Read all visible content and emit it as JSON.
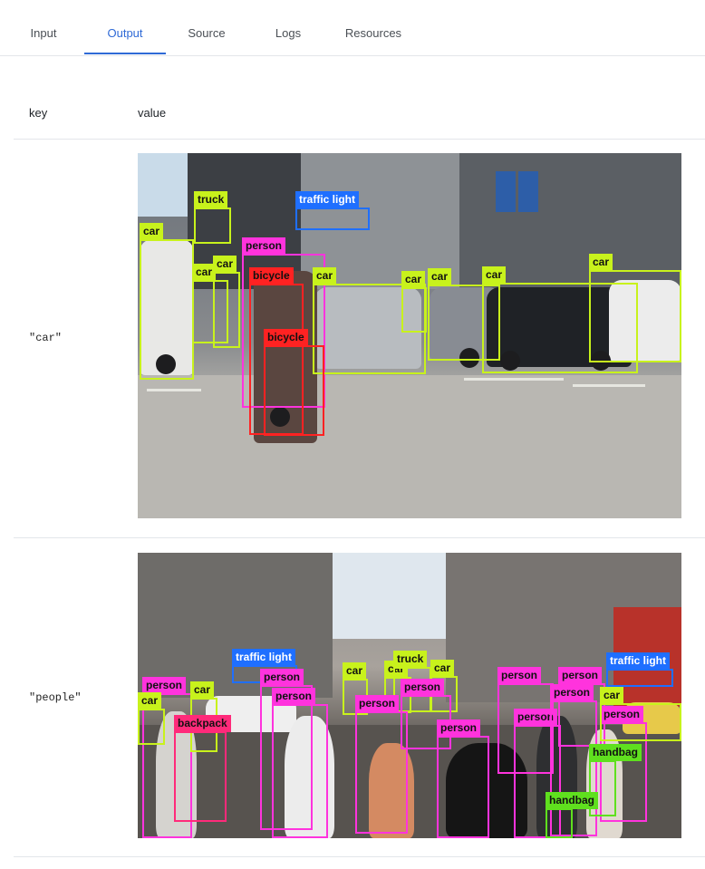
{
  "tabs": [
    {
      "label": "Input",
      "active": false
    },
    {
      "label": "Output",
      "active": true
    },
    {
      "label": "Source",
      "active": false
    },
    {
      "label": "Logs",
      "active": false
    },
    {
      "label": "Resources",
      "active": false
    }
  ],
  "table": {
    "key_header": "key",
    "value_header": "value",
    "rows": [
      {
        "key": "\"car\"",
        "detections": [
          {
            "label": "truck",
            "color": "#c8f21c"
          },
          {
            "label": "traffic light",
            "color": "#1f6fff"
          },
          {
            "label": "car",
            "color": "#c8f21c"
          },
          {
            "label": "person",
            "color": "#ff33dd"
          },
          {
            "label": "car",
            "color": "#c8f21c"
          },
          {
            "label": "car",
            "color": "#c8f21c"
          },
          {
            "label": "bicycle",
            "color": "#ff2222"
          },
          {
            "label": "car",
            "color": "#c8f21c"
          },
          {
            "label": "bicycle",
            "color": "#ff2222"
          },
          {
            "label": "car",
            "color": "#c8f21c"
          },
          {
            "label": "car",
            "color": "#c8f21c"
          },
          {
            "label": "car",
            "color": "#c8f21c"
          },
          {
            "label": "car",
            "color": "#c8f21c"
          }
        ]
      },
      {
        "key": "\"people\"",
        "detections": [
          {
            "label": "traffic light",
            "color": "#1f6fff"
          },
          {
            "label": "traffic light",
            "color": "#1f6fff"
          },
          {
            "label": "person",
            "color": "#ff33dd"
          },
          {
            "label": "car",
            "color": "#c8f21c"
          },
          {
            "label": "car",
            "color": "#c8f21c"
          },
          {
            "label": "backpack",
            "color": "#ff2a7a"
          },
          {
            "label": "person",
            "color": "#ff33dd"
          },
          {
            "label": "person",
            "color": "#ff33dd"
          },
          {
            "label": "car",
            "color": "#c8f21c"
          },
          {
            "label": "car",
            "color": "#c8f21c"
          },
          {
            "label": "truck",
            "color": "#c8f21c"
          },
          {
            "label": "car",
            "color": "#c8f21c"
          },
          {
            "label": "person",
            "color": "#ff33dd"
          },
          {
            "label": "person",
            "color": "#ff33dd"
          },
          {
            "label": "person",
            "color": "#ff33dd"
          },
          {
            "label": "person",
            "color": "#ff33dd"
          },
          {
            "label": "person",
            "color": "#ff33dd"
          },
          {
            "label": "person",
            "color": "#ff33dd"
          },
          {
            "label": "person",
            "color": "#ff33dd"
          },
          {
            "label": "car",
            "color": "#c8f21c"
          },
          {
            "label": "person",
            "color": "#ff33dd"
          },
          {
            "label": "handbag",
            "color": "#5fe01e"
          },
          {
            "label": "handbag",
            "color": "#5fe01e"
          }
        ]
      }
    ]
  },
  "colors": {
    "accent": "#2f6ad6",
    "border": "#e3e6ea"
  }
}
